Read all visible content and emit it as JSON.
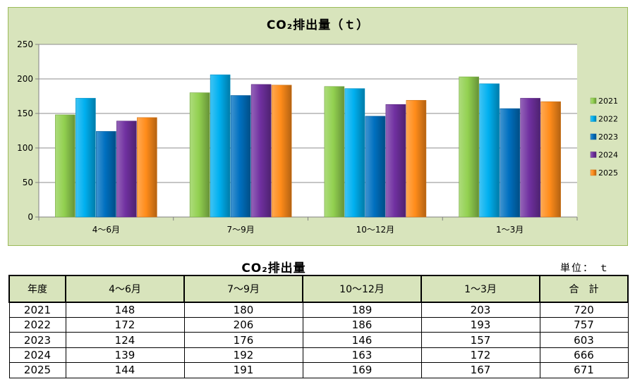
{
  "chart_data": {
    "type": "bar",
    "title": "CO₂排出量（ｔ）",
    "categories": [
      "4～6月",
      "7～9月",
      "10～12月",
      "1～3月"
    ],
    "series": [
      {
        "name": "2021",
        "values": [
          148,
          180,
          189,
          203
        ],
        "color": "#92d050"
      },
      {
        "name": "2022",
        "values": [
          172,
          206,
          186,
          193
        ],
        "color": "#00b0f0"
      },
      {
        "name": "2023",
        "values": [
          124,
          176,
          146,
          157
        ],
        "color": "#0070c0"
      },
      {
        "name": "2024",
        "values": [
          139,
          192,
          163,
          172
        ],
        "color": "#7030a0"
      },
      {
        "name": "2025",
        "values": [
          144,
          191,
          169,
          167
        ],
        "color": "#ff8c1a"
      }
    ],
    "yticks": [
      0,
      50,
      100,
      150,
      200,
      250
    ],
    "ylim": [
      0,
      250
    ],
    "grid": true,
    "legend": "right"
  },
  "table": {
    "title": "CO₂排出量",
    "unit": "単位： ｔ",
    "headers": [
      "年度",
      "4～6月",
      "7～9月",
      "10～12月",
      "1～3月",
      "合　計"
    ],
    "rows": [
      [
        "2021",
        "148",
        "180",
        "189",
        "203",
        "720"
      ],
      [
        "2022",
        "172",
        "206",
        "186",
        "193",
        "757"
      ],
      [
        "2023",
        "124",
        "176",
        "146",
        "157",
        "603"
      ],
      [
        "2024",
        "139",
        "192",
        "163",
        "172",
        "666"
      ],
      [
        "2025",
        "144",
        "191",
        "169",
        "167",
        "671"
      ]
    ]
  }
}
